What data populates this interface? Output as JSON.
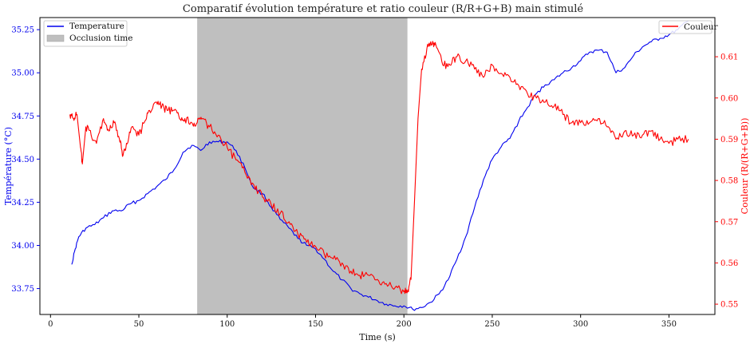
{
  "chart_data": {
    "type": "line",
    "title": "Comparatif évolution température et ratio couleur (R/R+G+B) main stimulé",
    "xlabel": "Time (s)",
    "ylabel_left": "Température (°C)",
    "ylabel_right": "Couleur (R/(R+G+B))",
    "xlim": [
      -6,
      376
    ],
    "ylim_left": [
      33.6,
      35.32
    ],
    "ylim_right": [
      0.5475,
      0.6195
    ],
    "x_ticks": [
      0,
      50,
      100,
      150,
      200,
      250,
      300,
      350
    ],
    "y_left_ticks": [
      33.75,
      34.0,
      34.25,
      34.5,
      34.75,
      35.0,
      35.25
    ],
    "y_left_tick_labels": [
      "33.75",
      "34.00",
      "34.25",
      "34.50",
      "34.75",
      "35.00",
      "35.25"
    ],
    "y_right_ticks": [
      0.55,
      0.56,
      0.57,
      0.58,
      0.59,
      0.6,
      0.61
    ],
    "y_right_tick_labels": [
      "0.55",
      "0.56",
      "0.57",
      "0.58",
      "0.59",
      "0.60",
      "0.61"
    ],
    "shaded_region": {
      "label": "Occlusion time",
      "x_start": 83,
      "x_end": 202,
      "color": "#bfbfbf"
    },
    "legend_left": {
      "position": "top-left",
      "entries": [
        "Temperature",
        "Occlusion time"
      ]
    },
    "legend_right": {
      "position": "top-right",
      "entries": [
        "Couleur"
      ]
    },
    "series": [
      {
        "name": "Temperature",
        "axis": "left",
        "color": "#0000ee",
        "x": [
          12,
          14,
          16,
          20,
          25,
          30,
          35,
          40,
          45,
          50,
          55,
          60,
          65,
          70,
          75,
          80,
          85,
          90,
          95,
          100,
          105,
          110,
          115,
          120,
          125,
          130,
          135,
          140,
          145,
          150,
          155,
          160,
          165,
          170,
          175,
          180,
          185,
          190,
          195,
          200,
          205,
          210,
          215,
          220,
          225,
          230,
          235,
          240,
          245,
          250,
          255,
          260,
          265,
          270,
          275,
          280,
          285,
          290,
          295,
          300,
          305,
          310,
          315,
          320,
          325,
          330,
          335,
          340,
          345,
          350,
          355,
          361
        ],
        "y": [
          33.89,
          33.98,
          34.05,
          34.1,
          34.12,
          34.16,
          34.2,
          34.2,
          34.24,
          34.26,
          34.3,
          34.34,
          34.38,
          34.44,
          34.54,
          34.58,
          34.55,
          34.6,
          34.6,
          34.6,
          34.55,
          34.45,
          34.33,
          34.3,
          34.22,
          34.15,
          34.1,
          34.04,
          34.0,
          33.98,
          33.92,
          33.85,
          33.8,
          33.75,
          33.72,
          33.7,
          33.68,
          33.66,
          33.65,
          33.65,
          33.63,
          33.64,
          33.67,
          33.72,
          33.8,
          33.92,
          34.05,
          34.22,
          34.38,
          34.5,
          34.57,
          34.62,
          34.72,
          34.8,
          34.88,
          34.93,
          34.96,
          35.0,
          35.03,
          35.07,
          35.12,
          35.13,
          35.12,
          35.0,
          35.03,
          35.1,
          35.15,
          35.18,
          35.2,
          35.22,
          35.25,
          35.3
        ]
      },
      {
        "name": "Couleur",
        "axis": "right",
        "color": "#ff0000",
        "x": [
          11,
          13,
          15,
          17,
          18,
          20,
          23,
          26,
          30,
          33,
          36,
          39,
          41,
          43,
          46,
          50,
          53,
          56,
          60,
          63,
          66,
          70,
          73,
          76,
          80,
          83,
          86,
          90,
          95,
          100,
          105,
          110,
          115,
          120,
          125,
          130,
          135,
          140,
          145,
          150,
          155,
          160,
          165,
          170,
          175,
          180,
          185,
          190,
          195,
          200,
          202,
          204,
          206,
          208,
          210,
          213,
          216,
          218,
          222,
          226,
          230,
          235,
          240,
          245,
          250,
          255,
          260,
          265,
          270,
          275,
          280,
          285,
          290,
          295,
          300,
          305,
          310,
          315,
          320,
          325,
          330,
          335,
          340,
          345,
          350,
          355,
          361
        ],
        "y": [
          0.596,
          0.595,
          0.596,
          0.588,
          0.584,
          0.593,
          0.591,
          0.589,
          0.595,
          0.592,
          0.594,
          0.59,
          0.586,
          0.589,
          0.593,
          0.591,
          0.594,
          0.597,
          0.599,
          0.598,
          0.597,
          0.597,
          0.595,
          0.595,
          0.594,
          0.594,
          0.595,
          0.593,
          0.591,
          0.588,
          0.585,
          0.582,
          0.579,
          0.576,
          0.574,
          0.572,
          0.57,
          0.567,
          0.565,
          0.564,
          0.562,
          0.561,
          0.56,
          0.558,
          0.557,
          0.557,
          0.556,
          0.555,
          0.554,
          0.553,
          0.553,
          0.556,
          0.575,
          0.595,
          0.607,
          0.612,
          0.613,
          0.613,
          0.608,
          0.608,
          0.61,
          0.609,
          0.607,
          0.605,
          0.608,
          0.606,
          0.605,
          0.603,
          0.601,
          0.6,
          0.599,
          0.598,
          0.596,
          0.594,
          0.594,
          0.594,
          0.595,
          0.593,
          0.59,
          0.592,
          0.591,
          0.591,
          0.592,
          0.59,
          0.589,
          0.59,
          0.59
        ]
      }
    ]
  }
}
